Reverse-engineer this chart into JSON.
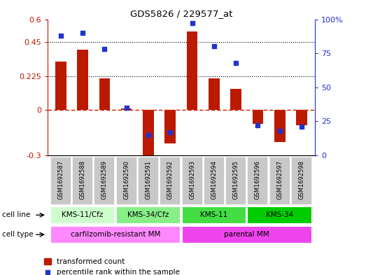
{
  "title": "GDS5826 / 229577_at",
  "samples": [
    "GSM1692587",
    "GSM1692588",
    "GSM1692589",
    "GSM1692590",
    "GSM1692591",
    "GSM1692592",
    "GSM1692593",
    "GSM1692594",
    "GSM1692595",
    "GSM1692596",
    "GSM1692597",
    "GSM1692598"
  ],
  "transformed_counts": [
    0.32,
    0.4,
    0.21,
    0.01,
    -0.3,
    -0.22,
    0.52,
    0.21,
    0.14,
    -0.09,
    -0.21,
    -0.1
  ],
  "percentile_ranks": [
    88,
    90,
    78,
    35,
    15,
    17,
    97,
    80,
    68,
    22,
    18,
    21
  ],
  "ylim_left": [
    -0.3,
    0.6
  ],
  "ylim_right": [
    0,
    100
  ],
  "yticks_left": [
    -0.3,
    0.0,
    0.225,
    0.45,
    0.6
  ],
  "yticks_left_labels": [
    "-0.3",
    "0",
    "0.225",
    "0.45",
    "0.6"
  ],
  "yticks_right": [
    0,
    25,
    50,
    75,
    100
  ],
  "yticks_right_labels": [
    "0",
    "25",
    "50",
    "75",
    "100%"
  ],
  "hlines": [
    0.225,
    0.45
  ],
  "bar_color": "#bb1a00",
  "dot_color": "#2233cc",
  "zero_line_color": "#cc2200",
  "cell_line_groups": [
    {
      "label": "KMS-11/Cfz",
      "start": 0,
      "end": 3,
      "color": "#ccffcc"
    },
    {
      "label": "KMS-34/Cfz",
      "start": 3,
      "end": 6,
      "color": "#88ee88"
    },
    {
      "label": "KMS-11",
      "start": 6,
      "end": 9,
      "color": "#44dd44"
    },
    {
      "label": "KMS-34",
      "start": 9,
      "end": 12,
      "color": "#00cc00"
    }
  ],
  "cell_type_groups": [
    {
      "label": "carfilzomib-resistant MM",
      "start": 0,
      "end": 6,
      "color": "#ff88ff"
    },
    {
      "label": "parental MM",
      "start": 6,
      "end": 12,
      "color": "#ee44ee"
    }
  ],
  "legend_bar_label": "transformed count",
  "legend_dot_label": "percentile rank within the sample",
  "bar_width": 0.5,
  "sample_label_row_color": "#c8c8c8",
  "cell_line_label": "cell line",
  "cell_type_label": "cell type"
}
